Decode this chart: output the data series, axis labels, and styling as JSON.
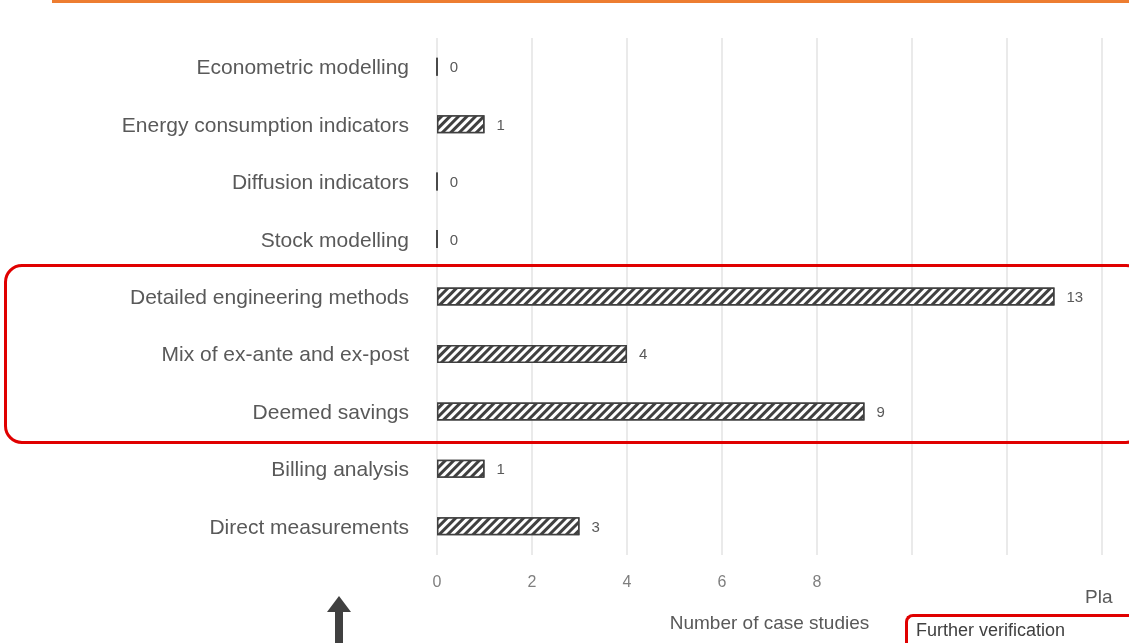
{
  "chart_data": {
    "type": "bar",
    "orientation": "horizontal",
    "xlabel": "Number of case studies",
    "categories": [
      "Econometric modelling",
      "Energy consumption indicators",
      "Diffusion indicators",
      "Stock modelling",
      "Detailed engineering methods",
      "Mix of ex-ante and ex-post",
      "Deemed savings",
      "Billing analysis",
      "Direct measurements"
    ],
    "values": [
      0,
      1,
      0,
      0,
      13,
      4,
      9,
      1,
      3
    ],
    "color": "#404040",
    "xlim": [
      0,
      14
    ],
    "xticks": [
      0,
      2,
      4,
      6,
      8,
      {
        "value": 10,
        "label": null
      },
      {
        "value": 12,
        "label": null
      },
      {
        "value": 14,
        "label": null
      }
    ],
    "grid": "x",
    "data_labels": true,
    "annotations": [
      "Pla",
      "Further verification"
    ]
  }
}
